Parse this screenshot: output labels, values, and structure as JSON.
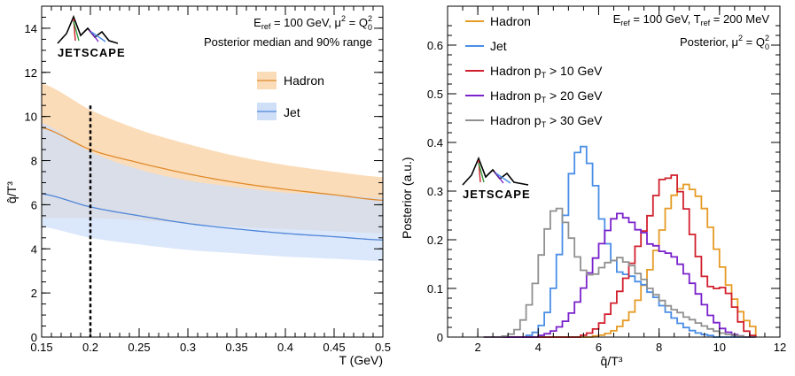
{
  "chart_data": [
    {
      "type": "area",
      "xlabel": "T (GeV)",
      "ylabel": "q̂/T³",
      "xlim": [
        0.15,
        0.5
      ],
      "ylim": [
        0,
        15
      ],
      "xticks": [
        0.15,
        0.2,
        0.25,
        0.3,
        0.35,
        0.4,
        0.45,
        0.5
      ],
      "xtick_labels": [
        "0.15",
        "0.2",
        "0.25",
        "0.3",
        "0.35",
        "0.4",
        "0.45",
        "0.5"
      ],
      "yticks": [
        0,
        2,
        4,
        6,
        8,
        10,
        12,
        14
      ],
      "ytick_labels": [
        "0",
        "2",
        "4",
        "6",
        "8",
        "10",
        "12",
        "14"
      ],
      "annotation_line1": {
        "main": "E",
        "sub": "ref",
        "rest": " = 100 GeV,   μ",
        "sup": "2",
        "rest2": " = Q",
        "sup2": "2",
        "sub2": "0"
      },
      "annotation_line2": "Posterior median and 90% range",
      "logo_text": "JETSCAPE",
      "vline_x": 0.2,
      "x": [
        0.15,
        0.2,
        0.25,
        0.3,
        0.35,
        0.4,
        0.45,
        0.5
      ],
      "series": [
        {
          "name": "Hadron",
          "color": "#e08a2b",
          "fill": "#fbdcb8",
          "median": [
            9.5,
            8.5,
            7.9,
            7.4,
            7.0,
            6.7,
            6.45,
            6.2
          ],
          "lower": [
            5.4,
            5.4,
            5.3,
            5.15,
            5.0,
            4.9,
            4.8,
            4.7
          ],
          "upper": [
            11.5,
            10.3,
            9.4,
            8.75,
            8.2,
            7.8,
            7.5,
            7.25
          ]
        },
        {
          "name": "Jet",
          "color": "#4f86d8",
          "fill": "#cfdff8",
          "median": [
            6.5,
            5.9,
            5.5,
            5.15,
            4.9,
            4.7,
            4.55,
            4.4
          ],
          "lower": [
            5.0,
            4.5,
            4.2,
            3.95,
            3.8,
            3.65,
            3.55,
            3.45
          ],
          "upper": [
            9.7,
            8.4,
            7.6,
            7.1,
            6.8,
            6.55,
            6.45,
            6.3
          ]
        }
      ]
    },
    {
      "type": "line",
      "xlabel": "q̂/T³",
      "ylabel": "Posterior (a.u.)",
      "xlim": [
        1,
        12
      ],
      "ylim": [
        0,
        0.68
      ],
      "xticks": [
        2,
        4,
        6,
        8,
        10,
        12
      ],
      "xtick_labels": [
        "2",
        "4",
        "6",
        "8",
        "10",
        "12"
      ],
      "yticks": [
        0,
        0.1,
        0.2,
        0.3,
        0.4,
        0.5,
        0.6
      ],
      "ytick_labels": [
        "0",
        "0.1",
        "0.2",
        "0.3",
        "0.4",
        "0.5",
        "0.6"
      ],
      "annotation_line1": {
        "main": "E",
        "sub": "ref",
        "rest": " = 100 GeV, T",
        "sub2": "ref",
        "rest2": " = 200 MeV"
      },
      "annotation_line2": {
        "main": "Posterior,   μ",
        "sup": "2",
        "rest": " = Q",
        "sup2": "2",
        "sub2": "0"
      },
      "logo_text": "JETSCAPE",
      "bin_width": 0.2,
      "series": [
        {
          "name": "Hadron",
          "label_main": "Hadron",
          "label_sub": "",
          "label_rest": "",
          "color": "#e69b25",
          "peaks": [
            {
              "mu": 8.9,
              "sigma": 0.95,
              "amp": 0.315
            }
          ]
        },
        {
          "name": "Jet",
          "label_main": "Jet",
          "label_sub": "",
          "label_rest": "",
          "color": "#4a8ee6",
          "peaks": [
            {
              "mu": 5.4,
              "sigma": 0.55,
              "amp": 0.36
            },
            {
              "mu": 7.0,
              "sigma": 1.0,
              "amp": 0.12
            }
          ]
        },
        {
          "name": "Hadron pT > 10 GeV",
          "label_main": "Hadron p",
          "label_sub": "T",
          "label_rest": " > 10 GeV",
          "color": "#d1202d",
          "peaks": [
            {
              "mu": 8.4,
              "sigma": 0.75,
              "amp": 0.33
            },
            {
              "mu": 7.0,
              "sigma": 0.6,
              "amp": 0.08
            },
            {
              "mu": 10.2,
              "sigma": 0.35,
              "amp": 0.08
            }
          ]
        },
        {
          "name": "Hadron pT > 20 GeV",
          "label_main": "Hadron p",
          "label_sub": "T",
          "label_rest": " > 20 GeV",
          "color": "#7a22cc",
          "peaks": [
            {
              "mu": 6.7,
              "sigma": 0.9,
              "amp": 0.245
            },
            {
              "mu": 8.6,
              "sigma": 0.75,
              "amp": 0.13
            }
          ]
        },
        {
          "name": "Hadron pT > 30 GeV",
          "label_main": "Hadron p",
          "label_sub": "T",
          "label_rest": " > 30 GeV",
          "color": "#909090",
          "peaks": [
            {
              "mu": 4.6,
              "sigma": 0.55,
              "amp": 0.25
            },
            {
              "mu": 6.6,
              "sigma": 0.9,
              "amp": 0.155
            },
            {
              "mu": 8.5,
              "sigma": 0.9,
              "amp": 0.04
            }
          ]
        }
      ]
    }
  ]
}
